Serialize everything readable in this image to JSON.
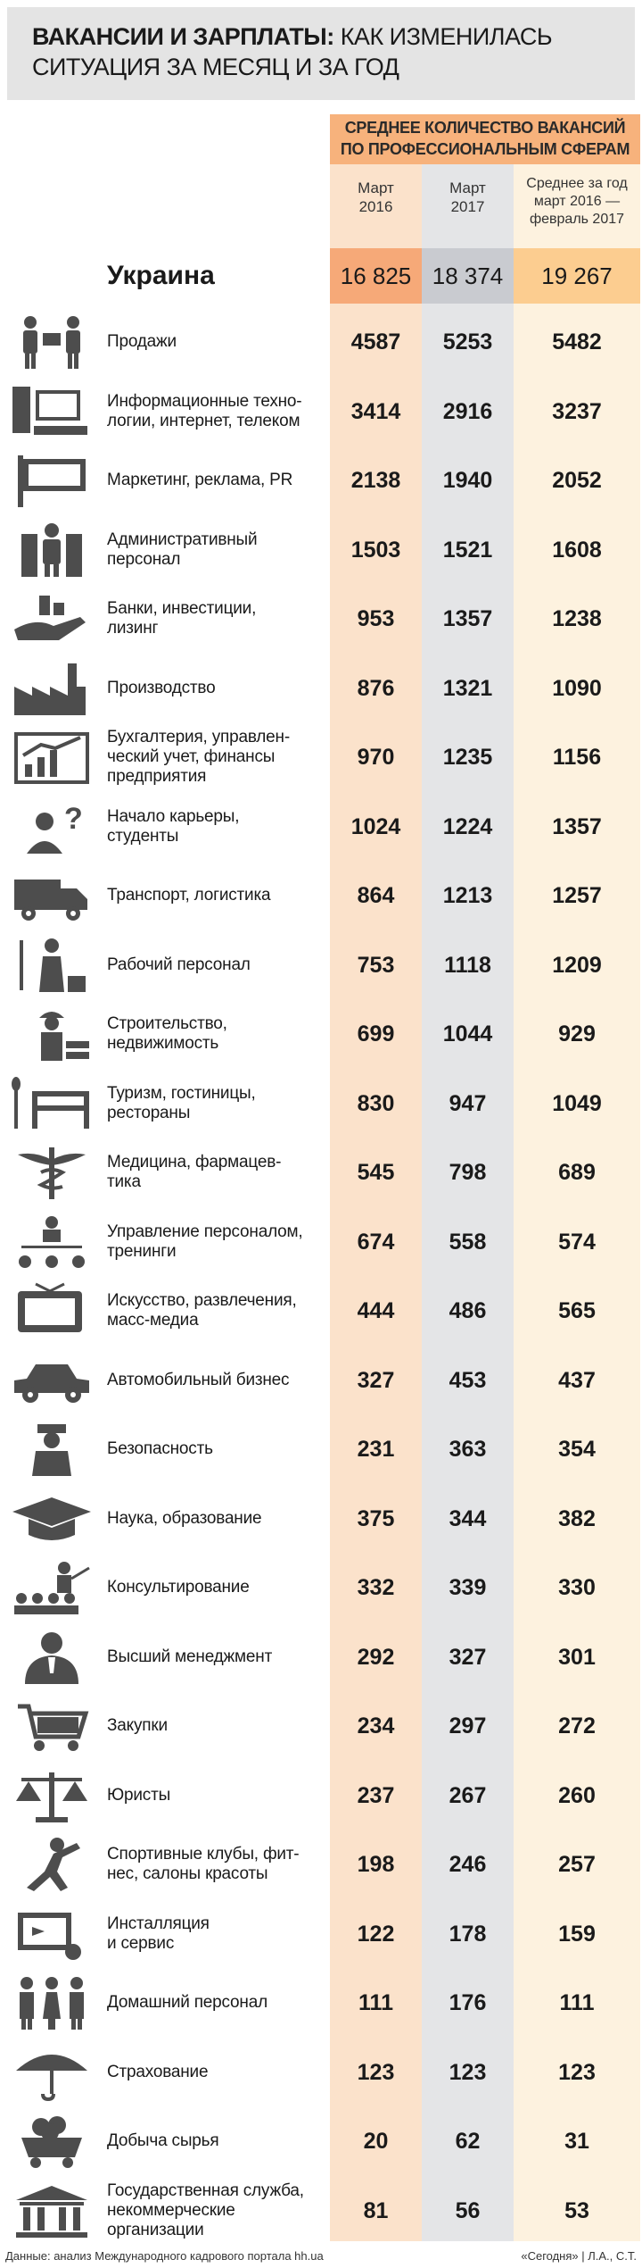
{
  "title": {
    "bold": "ВАКАНСИИ И ЗАРПЛАТЫ:",
    "rest1": " КАК ИЗМЕНИЛАСЬ",
    "line2": "СИТУАЦИЯ ЗА МЕСЯЦ И ЗА ГОД"
  },
  "header": {
    "band_line1": "СРЕДНЕЕ КОЛИЧЕСТВО ВАКАНСИЙ",
    "band_line2": "ПО ПРОФЕССИОНАЛЬНЫМ СФЕРАМ",
    "col1_line1": "Март",
    "col1_line2": "2016",
    "col2_line1": "Март",
    "col2_line2": "2017",
    "col3_line1": "Среднее за год",
    "col3_line2": "март 2016 —",
    "col3_line3": "февраль 2017"
  },
  "total": {
    "label": "Украина",
    "v1": "16 825",
    "v2": "18 374",
    "v3": "19 267"
  },
  "footer": {
    "source": "Данные: анализ Международного кадрового портала hh.ua",
    "credit": "«Сегодня» | Л.А., С.Т."
  },
  "colors": {
    "col1": "#fbe2cb",
    "col2": "#e4e5e7",
    "col3": "#fdf2df",
    "band": "#f7b27c",
    "icon": "#4d4d4d"
  },
  "chart_data": {
    "type": "table",
    "title": "ВАКАНСИИ И ЗАРПЛАТЫ: КАК ИЗМЕНИЛАСЬ СИТУАЦИЯ ЗА МЕСЯЦ И ЗА ГОД",
    "columns": [
      "Март 2016",
      "Март 2017",
      "Среднее за год март 2016 — февраль 2017"
    ],
    "rows": [
      {
        "label": "Продажи",
        "icon": "sales-people-icon",
        "values": [
          "4587",
          "5253",
          "5482"
        ]
      },
      {
        "label": "Информационные техно-\nлогии, интернет, телеком",
        "icon": "computer-icon",
        "values": [
          "3414",
          "2916",
          "3237"
        ]
      },
      {
        "label": "Маркетинг, реклама, PR",
        "icon": "billboard-icon",
        "values": [
          "2138",
          "1940",
          "2052"
        ]
      },
      {
        "label": "Административный\nперсонал",
        "icon": "office-worker-icon",
        "values": [
          "1503",
          "1521",
          "1608"
        ]
      },
      {
        "label": "Банки, инвестиции,\nлизинг",
        "icon": "money-hand-icon",
        "values": [
          "953",
          "1357",
          "1238"
        ]
      },
      {
        "label": "Производство",
        "icon": "factory-icon",
        "values": [
          "876",
          "1321",
          "1090"
        ]
      },
      {
        "label": "Бухгалтерия, управлен-\nческий учет, финансы\nпредприятия",
        "icon": "growth-chart-icon",
        "values": [
          "970",
          "1235",
          "1156"
        ]
      },
      {
        "label": "Начало карьеры,\nстуденты",
        "icon": "question-person-icon",
        "values": [
          "1024",
          "1224",
          "1357"
        ]
      },
      {
        "label": "Транспорт, логистика",
        "icon": "truck-icon",
        "values": [
          "864",
          "1213",
          "1257"
        ]
      },
      {
        "label": "Рабочий персонал",
        "icon": "cleaner-icon",
        "values": [
          "753",
          "1118",
          "1209"
        ]
      },
      {
        "label": "Строительство,\nнедвижимость",
        "icon": "builder-icon",
        "values": [
          "699",
          "1044",
          "929"
        ]
      },
      {
        "label": "Туризм, гостиницы,\nрестораны",
        "icon": "hotel-icon",
        "values": [
          "830",
          "947",
          "1049"
        ]
      },
      {
        "label": "Медицина, фармацев-\nтика",
        "icon": "caduceus-icon",
        "values": [
          "545",
          "798",
          "689"
        ]
      },
      {
        "label": "Управление персоналом,\nтренинги",
        "icon": "org-chart-icon",
        "values": [
          "674",
          "558",
          "574"
        ]
      },
      {
        "label": "Искусство, развлечения,\nмасс-медиа",
        "icon": "tv-icon",
        "values": [
          "444",
          "486",
          "565"
        ]
      },
      {
        "label": "Автомобильный бизнес",
        "icon": "car-icon",
        "values": [
          "327",
          "453",
          "437"
        ]
      },
      {
        "label": "Безопасность",
        "icon": "guard-icon",
        "values": [
          "231",
          "363",
          "354"
        ]
      },
      {
        "label": "Наука, образование",
        "icon": "graduation-cap-icon",
        "values": [
          "375",
          "344",
          "382"
        ]
      },
      {
        "label": "Консультирование",
        "icon": "presenter-icon",
        "values": [
          "332",
          "339",
          "330"
        ]
      },
      {
        "label": "Высший менеджмент",
        "icon": "manager-icon",
        "values": [
          "292",
          "327",
          "301"
        ]
      },
      {
        "label": "Закупки",
        "icon": "shopping-cart-icon",
        "values": [
          "234",
          "297",
          "272"
        ]
      },
      {
        "label": "Юристы",
        "icon": "scales-icon",
        "values": [
          "237",
          "267",
          "260"
        ]
      },
      {
        "label": "Спортивные клубы, фит-\nнес, салоны красоты",
        "icon": "fitness-icon",
        "values": [
          "198",
          "246",
          "257"
        ]
      },
      {
        "label": "Инсталляция\nи сервис",
        "icon": "install-icon",
        "values": [
          "122",
          "178",
          "159"
        ]
      },
      {
        "label": "Домашний персонал",
        "icon": "household-staff-icon",
        "values": [
          "111",
          "176",
          "111"
        ]
      },
      {
        "label": "Страхование",
        "icon": "umbrella-icon",
        "values": [
          "123",
          "123",
          "123"
        ]
      },
      {
        "label": "Добыча сырья",
        "icon": "mine-cart-icon",
        "values": [
          "20",
          "62",
          "31"
        ]
      },
      {
        "label": "Государственная служба,\nнекоммерческие\nорганизации",
        "icon": "government-building-icon",
        "values": [
          "81",
          "56",
          "53"
        ]
      }
    ]
  }
}
